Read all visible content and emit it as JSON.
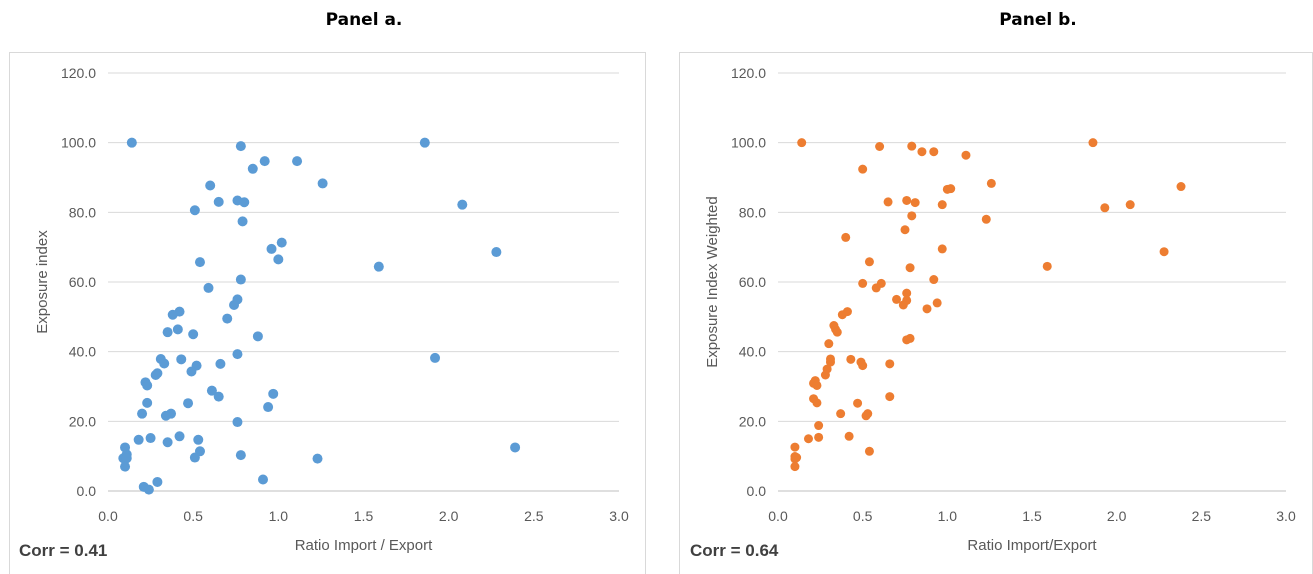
{
  "chart_data": [
    {
      "type": "scatter",
      "title": "Panel a.",
      "xlabel": "Ratio Import / Export",
      "ylabel": "Exposure index",
      "xlim": [
        0.0,
        3.0
      ],
      "ylim": [
        0.0,
        120.0
      ],
      "x_ticks": [
        "0.0",
        "0.5",
        "1.0",
        "1.5",
        "2.0",
        "2.5",
        "3.0"
      ],
      "y_ticks": [
        "0.0",
        "20.0",
        "40.0",
        "60.0",
        "80.0",
        "100.0",
        "120.0"
      ],
      "grid": "horizontal",
      "color": "#5b9bd5",
      "annotation": "Corr = 0.41",
      "points": [
        [
          0.14,
          100.0
        ],
        [
          0.78,
          99.0
        ],
        [
          0.92,
          94.7
        ],
        [
          1.11,
          94.7
        ],
        [
          0.85,
          92.5
        ],
        [
          1.86,
          100.0
        ],
        [
          1.26,
          88.3
        ],
        [
          0.6,
          87.7
        ],
        [
          0.76,
          83.4
        ],
        [
          0.8,
          82.9
        ],
        [
          0.65,
          83.0
        ],
        [
          2.08,
          82.2
        ],
        [
          0.51,
          80.6
        ],
        [
          0.79,
          77.4
        ],
        [
          1.02,
          71.3
        ],
        [
          0.96,
          69.5
        ],
        [
          2.28,
          68.6
        ],
        [
          1.0,
          66.5
        ],
        [
          0.54,
          65.7
        ],
        [
          1.59,
          64.4
        ],
        [
          0.78,
          60.7
        ],
        [
          0.59,
          58.3
        ],
        [
          0.76,
          55.0
        ],
        [
          0.74,
          53.4
        ],
        [
          0.42,
          51.5
        ],
        [
          0.38,
          50.6
        ],
        [
          0.7,
          49.5
        ],
        [
          0.41,
          46.4
        ],
        [
          0.35,
          45.6
        ],
        [
          0.5,
          45.0
        ],
        [
          0.88,
          44.4
        ],
        [
          0.76,
          39.3
        ],
        [
          1.92,
          38.2
        ],
        [
          0.31,
          37.9
        ],
        [
          0.43,
          37.8
        ],
        [
          0.33,
          36.6
        ],
        [
          0.52,
          36.0
        ],
        [
          0.66,
          36.5
        ],
        [
          0.49,
          34.3
        ],
        [
          0.29,
          33.8
        ],
        [
          0.28,
          33.3
        ],
        [
          0.22,
          31.2
        ],
        [
          0.23,
          30.3
        ],
        [
          0.61,
          28.8
        ],
        [
          0.97,
          27.9
        ],
        [
          0.65,
          27.1
        ],
        [
          0.23,
          25.3
        ],
        [
          0.47,
          25.2
        ],
        [
          0.94,
          24.1
        ],
        [
          0.2,
          22.2
        ],
        [
          0.37,
          22.2
        ],
        [
          0.34,
          21.6
        ],
        [
          0.76,
          19.8
        ],
        [
          0.42,
          15.7
        ],
        [
          0.25,
          15.2
        ],
        [
          0.18,
          14.7
        ],
        [
          0.53,
          14.7
        ],
        [
          0.35,
          14.0
        ],
        [
          0.1,
          12.5
        ],
        [
          2.39,
          12.5
        ],
        [
          0.54,
          11.4
        ],
        [
          0.11,
          10.5
        ],
        [
          0.78,
          10.3
        ],
        [
          0.51,
          9.6
        ],
        [
          0.09,
          9.4
        ],
        [
          0.11,
          9.4
        ],
        [
          1.23,
          9.3
        ],
        [
          0.1,
          7.0
        ],
        [
          0.91,
          3.3
        ],
        [
          0.29,
          2.6
        ],
        [
          0.21,
          1.2
        ],
        [
          0.24,
          0.4
        ]
      ]
    },
    {
      "type": "scatter",
      "title": "Panel b.",
      "xlabel": "Ratio Import/Export",
      "ylabel": "Exposure Index Weighted",
      "xlim": [
        0.0,
        3.0
      ],
      "ylim": [
        0.0,
        120.0
      ],
      "x_ticks": [
        "0.0",
        "0.5",
        "1.0",
        "1.5",
        "2.0",
        "2.5",
        "3.0"
      ],
      "y_ticks": [
        "0.0",
        "20.0",
        "40.0",
        "60.0",
        "80.0",
        "100.0",
        "120.0"
      ],
      "grid": "horizontal",
      "color": "#ed7d31",
      "annotation": "Corr = 0.64",
      "points": [
        [
          0.14,
          100.0
        ],
        [
          0.6,
          98.9
        ],
        [
          0.79,
          99.0
        ],
        [
          1.86,
          100.0
        ],
        [
          0.85,
          97.4
        ],
        [
          0.92,
          97.4
        ],
        [
          1.11,
          96.4
        ],
        [
          0.5,
          92.4
        ],
        [
          1.26,
          88.3
        ],
        [
          2.38,
          87.4
        ],
        [
          1.0,
          86.6
        ],
        [
          1.02,
          86.8
        ],
        [
          0.76,
          83.4
        ],
        [
          0.65,
          83.0
        ],
        [
          0.81,
          82.8
        ],
        [
          0.97,
          82.2
        ],
        [
          2.08,
          82.2
        ],
        [
          1.93,
          81.3
        ],
        [
          0.79,
          79.0
        ],
        [
          1.23,
          78.0
        ],
        [
          0.75,
          75.0
        ],
        [
          0.4,
          72.8
        ],
        [
          0.97,
          69.5
        ],
        [
          2.28,
          68.7
        ],
        [
          0.54,
          65.8
        ],
        [
          1.59,
          64.5
        ],
        [
          0.78,
          64.1
        ],
        [
          0.92,
          60.7
        ],
        [
          0.5,
          59.6
        ],
        [
          0.61,
          59.6
        ],
        [
          0.58,
          58.3
        ],
        [
          0.76,
          56.8
        ],
        [
          0.7,
          55.0
        ],
        [
          0.76,
          54.7
        ],
        [
          0.94,
          54.0
        ],
        [
          0.74,
          53.4
        ],
        [
          0.88,
          52.3
        ],
        [
          0.41,
          51.5
        ],
        [
          0.38,
          50.6
        ],
        [
          0.33,
          47.5
        ],
        [
          0.34,
          46.4
        ],
        [
          0.35,
          45.6
        ],
        [
          0.78,
          43.8
        ],
        [
          0.76,
          43.4
        ],
        [
          0.3,
          42.3
        ],
        [
          0.31,
          37.9
        ],
        [
          0.43,
          37.8
        ],
        [
          0.31,
          37.0
        ],
        [
          0.49,
          37.0
        ],
        [
          0.66,
          36.5
        ],
        [
          0.5,
          36.0
        ],
        [
          0.29,
          35.0
        ],
        [
          0.28,
          33.3
        ],
        [
          0.22,
          31.7
        ],
        [
          0.21,
          30.9
        ],
        [
          0.23,
          30.3
        ],
        [
          0.66,
          27.1
        ],
        [
          0.21,
          26.5
        ],
        [
          0.23,
          25.3
        ],
        [
          0.47,
          25.2
        ],
        [
          0.37,
          22.2
        ],
        [
          0.53,
          22.2
        ],
        [
          0.52,
          21.6
        ],
        [
          0.24,
          18.8
        ],
        [
          0.42,
          15.7
        ],
        [
          0.24,
          15.4
        ],
        [
          0.18,
          15.0
        ],
        [
          0.1,
          12.6
        ],
        [
          0.54,
          11.4
        ],
        [
          0.1,
          9.9
        ],
        [
          0.11,
          9.6
        ],
        [
          0.1,
          9.2
        ],
        [
          0.1,
          7.0
        ]
      ]
    }
  ]
}
